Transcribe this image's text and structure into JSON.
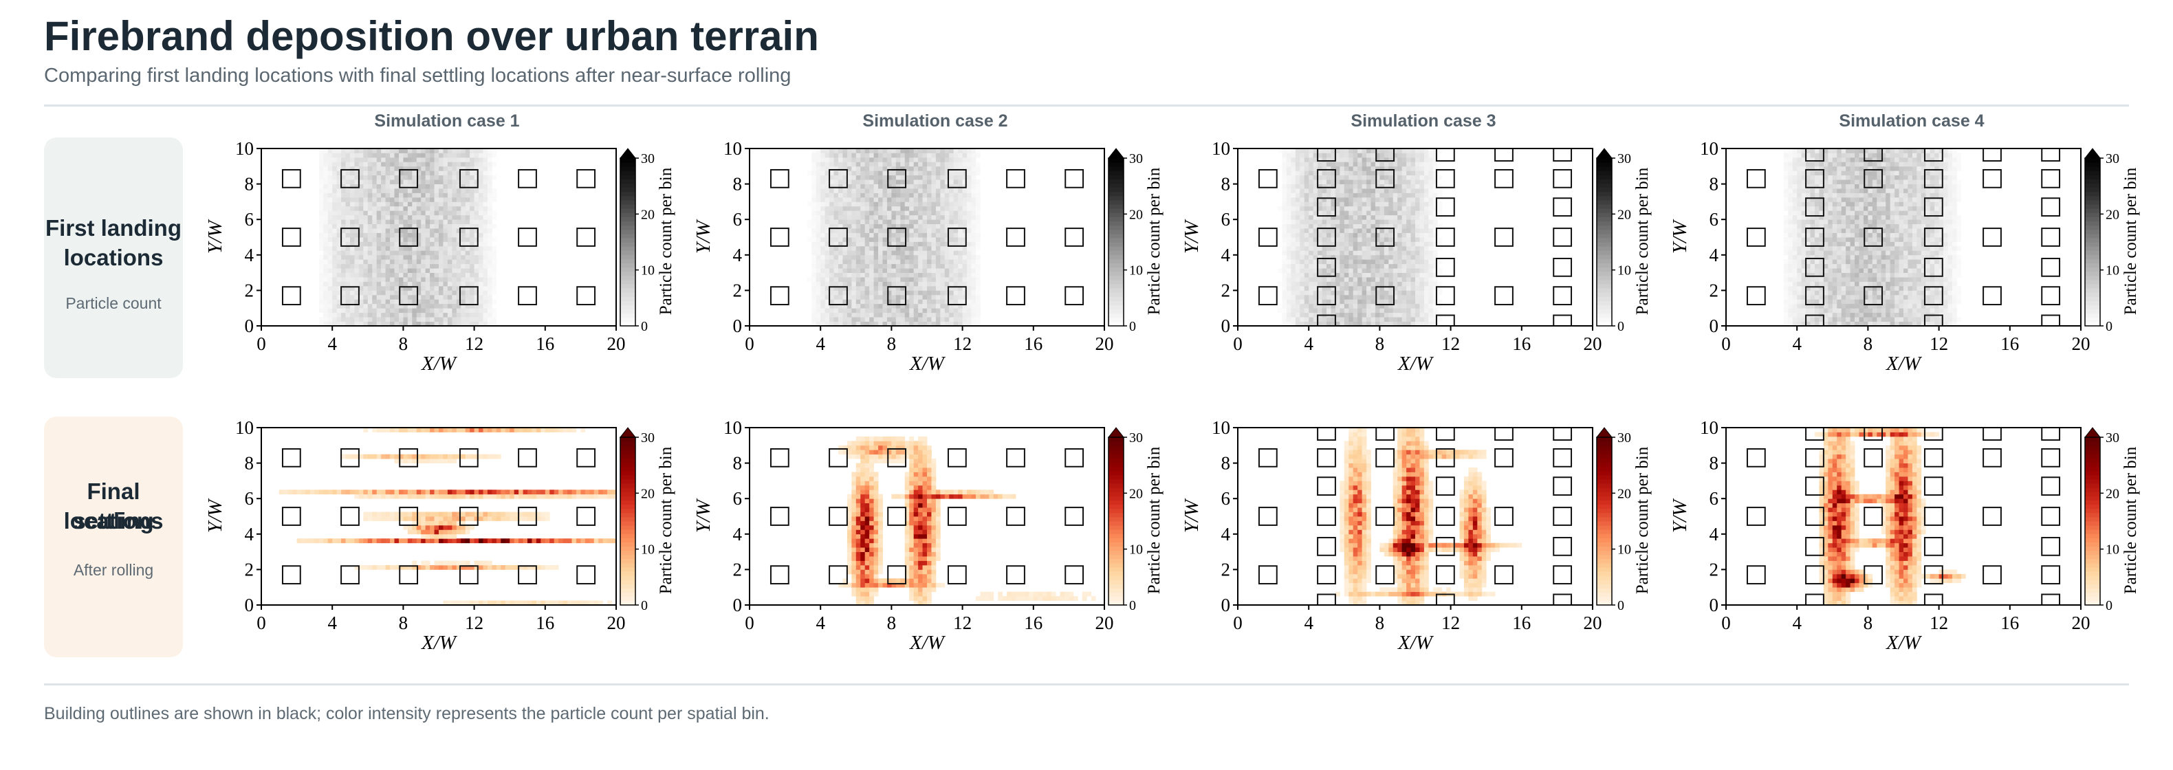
{
  "header": {
    "title": "Firebrand deposition over urban terrain",
    "subtitle": "Comparing first landing locations with final settling locations after near-surface rolling"
  },
  "rows": [
    {
      "title_line1": "First landing",
      "title_line2": "locations",
      "subtitle": "Particle count",
      "card_color": "#eef3f2"
    },
    {
      "title_line1": "Final settling",
      "title_line2": "locations",
      "subtitle": "After rolling",
      "card_color": "#fdf2e8"
    }
  ],
  "footnote": "Building outlines are shown in black; color intensity represents the particle count per spatial bin.",
  "colors": {
    "gray_scale": [
      "#ffffff",
      "#d9d9d9",
      "#a6a6a6",
      "#6b6b6b",
      "#2b2b2b",
      "#000000"
    ],
    "orange_scale": [
      "#fff7ec",
      "#fdd49e",
      "#fc8d59",
      "#d7301f",
      "#990000",
      "#5c0000"
    ],
    "building_edge": "#111111"
  },
  "chart_data": {
    "type": "heatmap",
    "xlabel": "X/W",
    "ylabel": "Y/W",
    "colorbar_label": "Particle count per bin",
    "xlim": [
      0,
      20
    ],
    "ylim": [
      0,
      10
    ],
    "x_ticks": [
      "0",
      "4",
      "8",
      "12",
      "16",
      "20"
    ],
    "y_ticks": [
      "0",
      "2",
      "4",
      "6",
      "8",
      "10"
    ],
    "colorbar_ticks": [
      "0",
      "10",
      "20",
      "30"
    ],
    "clim": [
      0,
      30
    ],
    "building_size": 1.0,
    "cases": [
      {
        "title": "Simulation case 1",
        "buildings": [
          [
            1.7,
            8.3
          ],
          [
            5,
            8.3
          ],
          [
            8.3,
            8.3
          ],
          [
            11.7,
            8.3
          ],
          [
            15,
            8.3
          ],
          [
            18.3,
            8.3
          ],
          [
            1.7,
            5
          ],
          [
            5,
            5
          ],
          [
            8.3,
            5
          ],
          [
            11.7,
            5
          ],
          [
            15,
            5
          ],
          [
            18.3,
            5
          ],
          [
            1.7,
            1.7
          ],
          [
            5,
            1.7
          ],
          [
            8.3,
            1.7
          ],
          [
            11.7,
            1.7
          ],
          [
            15,
            1.7
          ],
          [
            18.3,
            1.7
          ]
        ],
        "first_landing": {
          "x_range": [
            3.6,
            12.8
          ],
          "y_range": [
            0,
            10
          ],
          "peak_x": 8.5,
          "level": 7
        },
        "final_settling": {
          "hotspots": [
            {
              "x": 13.0,
              "y": 6.3,
              "w": 20,
              "h": 0.35,
              "v": 22
            },
            {
              "x": 12.0,
              "y": 3.6,
              "w": 16,
              "h": 0.35,
              "v": 26
            },
            {
              "x": 11.0,
              "y": 5.0,
              "w": 10,
              "h": 0.35,
              "v": 16
            },
            {
              "x": 11.0,
              "y": 2.2,
              "w": 10,
              "h": 0.3,
              "v": 14
            },
            {
              "x": 9.0,
              "y": 8.3,
              "w": 8,
              "h": 0.3,
              "v": 14
            },
            {
              "x": 12.0,
              "y": 9.9,
              "w": 10,
              "h": 0.25,
              "v": 12
            },
            {
              "x": 15.0,
              "y": 0.2,
              "w": 10,
              "h": 0.2,
              "v": 10
            },
            {
              "x": 10.0,
              "y": 4.3,
              "w": 3,
              "h": 0.8,
              "v": 22
            }
          ]
        }
      },
      {
        "title": "Simulation case 2",
        "buildings": [
          [
            1.7,
            8.3
          ],
          [
            5,
            8.3
          ],
          [
            8.3,
            8.3
          ],
          [
            11.7,
            8.3
          ],
          [
            15,
            8.3
          ],
          [
            18.3,
            8.3
          ],
          [
            1.7,
            5
          ],
          [
            5,
            5
          ],
          [
            8.3,
            5
          ],
          [
            11.7,
            5
          ],
          [
            15,
            5
          ],
          [
            18.3,
            5
          ],
          [
            1.7,
            1.7
          ],
          [
            5,
            1.7
          ],
          [
            8.3,
            1.7
          ],
          [
            11.7,
            1.7
          ],
          [
            15,
            1.7
          ],
          [
            18.3,
            1.7
          ]
        ],
        "first_landing": {
          "x_range": [
            3.8,
            12.6
          ],
          "y_range": [
            0,
            10
          ],
          "peak_x": 8.2,
          "level": 7
        },
        "final_settling": {
          "hotspots": [
            {
              "x": 6.5,
              "y": 4.0,
              "w": 1.6,
              "h": 7,
              "v": 24
            },
            {
              "x": 9.7,
              "y": 4.5,
              "w": 1.6,
              "h": 8,
              "v": 24
            },
            {
              "x": 11.5,
              "y": 6.2,
              "w": 6,
              "h": 0.35,
              "v": 22
            },
            {
              "x": 8.0,
              "y": 1.2,
              "w": 5,
              "h": 0.5,
              "v": 14
            },
            {
              "x": 16.0,
              "y": 0.5,
              "w": 9,
              "h": 0.25,
              "v": 10
            },
            {
              "x": 7.5,
              "y": 8.8,
              "w": 4,
              "h": 1.2,
              "v": 12
            }
          ]
        }
      },
      {
        "title": "Simulation case 3",
        "buildings": [
          [
            5,
            9.8
          ],
          [
            8.3,
            9.8
          ],
          [
            11.7,
            9.8
          ],
          [
            15,
            9.8
          ],
          [
            18.3,
            9.8
          ],
          [
            1.7,
            8.3
          ],
          [
            5,
            8.3
          ],
          [
            8.3,
            8.3
          ],
          [
            11.7,
            8.3
          ],
          [
            15,
            8.3
          ],
          [
            18.3,
            8.3
          ],
          [
            5,
            6.7
          ],
          [
            11.7,
            6.7
          ],
          [
            18.3,
            6.7
          ],
          [
            1.7,
            5
          ],
          [
            5,
            5
          ],
          [
            8.3,
            5
          ],
          [
            11.7,
            5
          ],
          [
            15,
            5
          ],
          [
            18.3,
            5
          ],
          [
            5,
            3.3
          ],
          [
            11.7,
            3.3
          ],
          [
            18.3,
            3.3
          ],
          [
            1.7,
            1.7
          ],
          [
            5,
            1.7
          ],
          [
            8.3,
            1.7
          ],
          [
            11.7,
            1.7
          ],
          [
            15,
            1.7
          ],
          [
            18.3,
            1.7
          ],
          [
            5,
            0.1
          ],
          [
            11.7,
            0.1
          ],
          [
            18.3,
            0.1
          ]
        ],
        "first_landing": {
          "x_range": [
            2.8,
            11.0
          ],
          "y_range": [
            0,
            10
          ],
          "peak_x": 7.0,
          "level": 7
        },
        "final_settling": {
          "hotspots": [
            {
              "x": 9.8,
              "y": 5.0,
              "w": 1.8,
              "h": 10,
              "v": 22
            },
            {
              "x": 6.7,
              "y": 5.0,
              "w": 1.4,
              "h": 9,
              "v": 16
            },
            {
              "x": 13.3,
              "y": 4.0,
              "w": 1.4,
              "h": 6,
              "v": 20
            },
            {
              "x": 12.5,
              "y": 3.3,
              "w": 6,
              "h": 0.35,
              "v": 18
            },
            {
              "x": 11.5,
              "y": 8.5,
              "w": 5,
              "h": 0.35,
              "v": 16
            },
            {
              "x": 10.0,
              "y": 0.7,
              "w": 8,
              "h": 0.3,
              "v": 12
            },
            {
              "x": 9.3,
              "y": 3.2,
              "w": 2,
              "h": 0.8,
              "v": 26
            }
          ]
        }
      },
      {
        "title": "Simulation case 4",
        "buildings": [
          [
            5,
            9.8
          ],
          [
            8.3,
            9.8
          ],
          [
            11.7,
            9.8
          ],
          [
            15,
            9.8
          ],
          [
            18.3,
            9.8
          ],
          [
            1.7,
            8.3
          ],
          [
            5,
            8.3
          ],
          [
            8.3,
            8.3
          ],
          [
            11.7,
            8.3
          ],
          [
            15,
            8.3
          ],
          [
            18.3,
            8.3
          ],
          [
            5,
            6.7
          ],
          [
            11.7,
            6.7
          ],
          [
            18.3,
            6.7
          ],
          [
            1.7,
            5
          ],
          [
            5,
            5
          ],
          [
            8.3,
            5
          ],
          [
            11.7,
            5
          ],
          [
            15,
            5
          ],
          [
            18.3,
            5
          ],
          [
            5,
            3.3
          ],
          [
            11.7,
            3.3
          ],
          [
            18.3,
            3.3
          ],
          [
            1.7,
            1.7
          ],
          [
            5,
            1.7
          ],
          [
            8.3,
            1.7
          ],
          [
            11.7,
            1.7
          ],
          [
            15,
            1.7
          ],
          [
            18.3,
            1.7
          ],
          [
            5,
            0.1
          ],
          [
            11.7,
            0.1
          ],
          [
            18.3,
            0.1
          ]
        ],
        "first_landing": {
          "x_range": [
            3.6,
            12.8
          ],
          "y_range": [
            0,
            10
          ],
          "peak_x": 8.0,
          "level": 7
        },
        "final_settling": {
          "hotspots": [
            {
              "x": 6.3,
              "y": 5.0,
              "w": 1.8,
              "h": 10,
              "v": 22
            },
            {
              "x": 10.0,
              "y": 5.0,
              "w": 1.8,
              "h": 10,
              "v": 22
            },
            {
              "x": 8.2,
              "y": 6.0,
              "w": 4,
              "h": 0.5,
              "v": 16
            },
            {
              "x": 8.2,
              "y": 3.5,
              "w": 4,
              "h": 0.5,
              "v": 14
            },
            {
              "x": 8.5,
              "y": 9.7,
              "w": 6,
              "h": 0.4,
              "v": 18
            },
            {
              "x": 12.3,
              "y": 1.6,
              "w": 2,
              "h": 0.5,
              "v": 14
            },
            {
              "x": 7.0,
              "y": 1.4,
              "w": 2,
              "h": 1.0,
              "v": 26
            }
          ]
        }
      }
    ]
  }
}
